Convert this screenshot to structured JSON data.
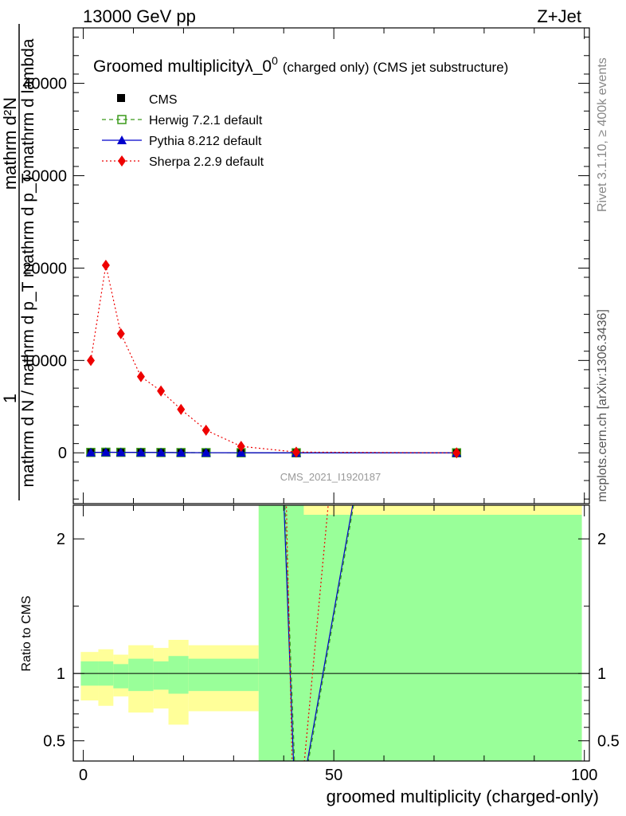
{
  "header": {
    "left": "13000 GeV pp",
    "right": "Z+Jet"
  },
  "side": {
    "rivet": "Rivet 3.1.10, ≥ 400k events",
    "mcplots": "mcplots.cern.ch [arXiv:1306.3436]"
  },
  "chart_data": [
    {
      "type": "line",
      "title": "Groomed multiplicityλ_0",
      "title_sup": "0",
      "title_suffix": "(charged only) (CMS jet substructure)",
      "ylabel_num": "1",
      "ylabel_den": "mathrm d N / mathrm d p_T mathrm d p_T mathrm d lambda",
      "ylabel_top": "mathrm d²N",
      "ylim": [
        -5500,
        46000
      ],
      "xlim": [
        -2,
        101
      ],
      "yticks": [
        0,
        10000,
        20000,
        30000,
        40000
      ],
      "ytick_labels": [
        "0",
        "10000",
        "20000",
        "30000",
        "40000"
      ],
      "watermark": "CMS_2021_I1920187",
      "legend": [
        "CMS",
        "Herwig 7.2.1 default",
        "Pythia 8.212 default",
        "Sherpa 2.2.9 default"
      ],
      "series": [
        {
          "name": "CMS",
          "color": "#000000",
          "marker": "square",
          "x": [
            1.5,
            4.5,
            7.5,
            11.5,
            15.5,
            19.5,
            24.5,
            31.5,
            42.5,
            74.5
          ],
          "y": [
            40,
            60,
            50,
            40,
            30,
            20,
            15,
            8,
            2,
            0.5
          ]
        },
        {
          "name": "Herwig 7.2.1 default",
          "color": "#3a9a1a",
          "marker": "open-square",
          "dash": "5,4",
          "x": [
            1.5,
            4.5,
            7.5,
            11.5,
            15.5,
            19.5,
            24.5,
            31.5,
            42.5,
            74.5
          ],
          "y": [
            45,
            65,
            55,
            45,
            35,
            25,
            18,
            10,
            3,
            1
          ]
        },
        {
          "name": "Pythia 8.212 default",
          "color": "#0000cc",
          "marker": "triangle",
          "x": [
            1.5,
            4.5,
            7.5,
            11.5,
            15.5,
            19.5,
            24.5,
            31.5,
            42.5,
            74.5
          ],
          "y": [
            40,
            65,
            55,
            40,
            30,
            20,
            15,
            8,
            2,
            0.5
          ]
        },
        {
          "name": "Sherpa 2.2.9 default",
          "color": "#ee0000",
          "marker": "diamond",
          "dash": "2,3",
          "x": [
            1.5,
            4.5,
            7.5,
            11.5,
            15.5,
            19.5,
            24.5,
            31.5,
            42.5,
            74.5
          ],
          "y": [
            10000,
            20300,
            12900,
            8250,
            6700,
            4700,
            2450,
            700,
            80,
            0
          ]
        }
      ]
    },
    {
      "type": "area",
      "ylabel": "Ratio to CMS",
      "xlabel": "groomed multiplicity (charged-only)",
      "ylim": [
        0.35,
        2.25
      ],
      "xlim": [
        -2,
        101
      ],
      "xticks": [
        0,
        50,
        100
      ],
      "xtick_labels": [
        "0",
        "50",
        "100"
      ],
      "yticks": [
        0.5,
        1,
        2
      ],
      "ytick_labels": [
        "0.5",
        "1",
        "2"
      ],
      "bands": [
        {
          "x0": -0.5,
          "x1": 3,
          "stat": [
            0.91,
            1.09
          ],
          "total": [
            0.8,
            1.16
          ]
        },
        {
          "x0": 3,
          "x1": 6,
          "stat": [
            0.91,
            1.09
          ],
          "total": [
            0.76,
            1.18
          ]
        },
        {
          "x0": 6,
          "x1": 9,
          "stat": [
            0.89,
            1.07
          ],
          "total": [
            0.83,
            1.14
          ]
        },
        {
          "x0": 9,
          "x1": 14,
          "stat": [
            0.87,
            1.11
          ],
          "total": [
            0.71,
            1.21
          ]
        },
        {
          "x0": 14,
          "x1": 17,
          "stat": [
            0.88,
            1.09
          ],
          "total": [
            0.74,
            1.19
          ]
        },
        {
          "x0": 17,
          "x1": 21,
          "stat": [
            0.85,
            1.13
          ],
          "total": [
            0.62,
            1.25
          ]
        },
        {
          "x0": 21,
          "x1": 35,
          "stat": [
            0.87,
            1.11
          ],
          "total": [
            0.72,
            1.21
          ]
        },
        {
          "x0": 35,
          "x1": 99.5,
          "stat": [
            0.0,
            2.4
          ],
          "total": [
            0.0,
            2.4
          ]
        }
      ],
      "band_colors": {
        "stat": "#99ff99",
        "total": "#ffff99"
      },
      "ratio_lines": [
        {
          "name": "Pythia",
          "color": "#0000cc",
          "x": [
            40,
            42,
            44.5,
            54
          ],
          "y": [
            2.3,
            0.3,
            0.3,
            2.3
          ]
        },
        {
          "name": "Herwig",
          "color": "#3a9a1a",
          "x": [
            40.2,
            42.2,
            44.7,
            54.2
          ],
          "y": [
            2.3,
            0.3,
            0.3,
            2.3
          ]
        },
        {
          "name": "Sherpa",
          "color": "#ee0000",
          "x": [
            40.5,
            41.7,
            44,
            49
          ],
          "y": [
            2.3,
            0.3,
            0.3,
            2.3
          ]
        }
      ]
    }
  ]
}
